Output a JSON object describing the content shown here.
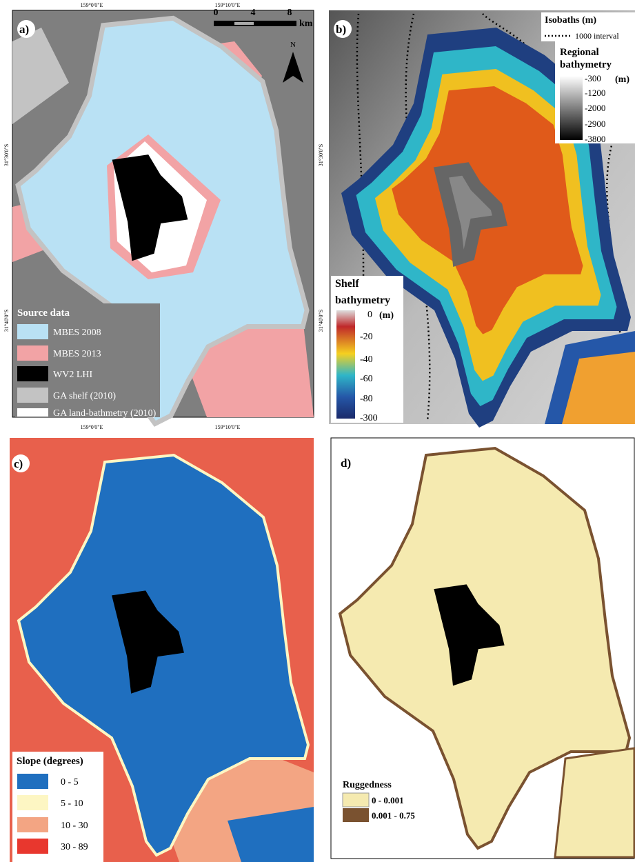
{
  "panel_a": {
    "label": "a)",
    "top_coords": [
      "159°0'0\"E",
      "159°10'0\"E"
    ],
    "left_coords": [
      "31°30'0\"S",
      "31°40'0\"S"
    ],
    "bottom_coords": [
      "159°0'0\"E",
      "159°10'0\"E"
    ],
    "scale_bar": [
      "0",
      "4",
      "8",
      "km"
    ],
    "north": "N",
    "legend": {
      "title": "Source data",
      "items": [
        "MBES 2008",
        "MBES 2013",
        "WV2 LHI",
        "GA shelf (2010)",
        "GA land-bathmetry (2010)"
      ]
    }
  },
  "panel_b": {
    "label": "b)",
    "left_coords": [
      "31°30'0\"S",
      "31°40'0\"S"
    ],
    "isobaths": {
      "title": "Isobaths (m)",
      "item": "1000 interval"
    },
    "regional": {
      "title_lines": [
        "Regional",
        "bathymetry"
      ],
      "unit": "(m)",
      "ticks": [
        "-300",
        "-1200",
        "-2000",
        "-2900",
        "-3800"
      ]
    },
    "shelf": {
      "title_lines": [
        "Shelf",
        "bathymetry"
      ],
      "unit": "(m)",
      "ticks": [
        "0",
        "-20",
        "-40",
        "-60",
        "-80",
        "-300"
      ]
    }
  },
  "panel_c": {
    "label": "c)",
    "legend": {
      "title": "Slope (degrees)",
      "items": [
        "0 - 5",
        "5 - 10",
        "10 - 30",
        "30 - 89"
      ]
    }
  },
  "panel_d": {
    "label": "d)",
    "legend": {
      "title": "Ruggedness",
      "items": [
        "0 - 0.001",
        "0.001 - 0.75"
      ]
    }
  }
}
